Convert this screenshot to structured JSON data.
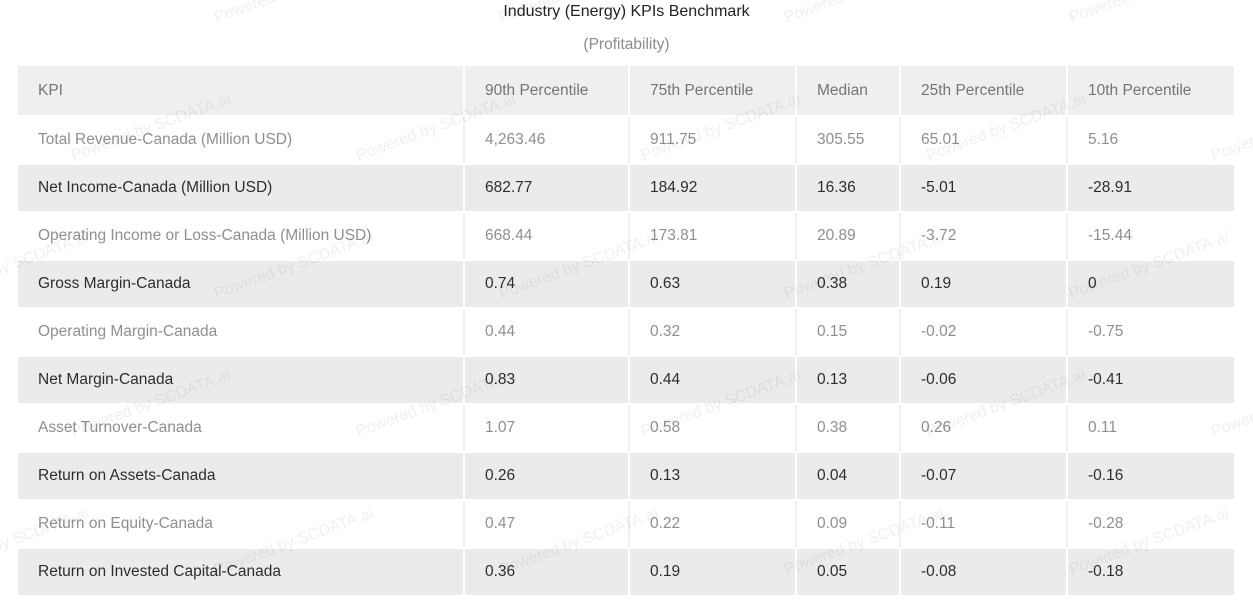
{
  "title": "Industry (Energy) KPIs Benchmark",
  "subtitle": "(Profitability)",
  "watermark_text": "Powered by SCDATA.ai",
  "colors": {
    "header_bg": "#efefef",
    "even_row_bg": "#ebebeb",
    "odd_row_text": "#8f8f8f",
    "even_row_text": "#2d2d2d",
    "header_text": "#757575",
    "subtitle_text": "#8c8c8c"
  },
  "chart_data": {
    "type": "table",
    "title": "Industry (Energy) KPIs Benchmark",
    "subtitle": "(Profitability)",
    "columns": [
      "KPI",
      "90th Percentile",
      "75th Percentile",
      "Median",
      "25th Percentile",
      "10th Percentile"
    ],
    "rows": [
      [
        "Total Revenue-Canada (Million USD)",
        "4,263.46",
        "911.75",
        "305.55",
        "65.01",
        "5.16"
      ],
      [
        "Net Income-Canada (Million USD)",
        "682.77",
        "184.92",
        "16.36",
        "-5.01",
        "-28.91"
      ],
      [
        "Operating Income or Loss-Canada (Million USD)",
        "668.44",
        "173.81",
        "20.89",
        "-3.72",
        "-15.44"
      ],
      [
        "Gross Margin-Canada",
        "0.74",
        "0.63",
        "0.38",
        "0.19",
        "0"
      ],
      [
        "Operating Margin-Canada",
        "0.44",
        "0.32",
        "0.15",
        "-0.02",
        "-0.75"
      ],
      [
        "Net Margin-Canada",
        "0.83",
        "0.44",
        "0.13",
        "-0.06",
        "-0.41"
      ],
      [
        "Asset Turnover-Canada",
        "1.07",
        "0.58",
        "0.38",
        "0.26",
        "0.11"
      ],
      [
        "Return on Assets-Canada",
        "0.26",
        "0.13",
        "0.04",
        "-0.07",
        "-0.16"
      ],
      [
        "Return on Equity-Canada",
        "0.47",
        "0.22",
        "0.09",
        "-0.11",
        "-0.28"
      ],
      [
        "Return on Invested Capital-Canada",
        "0.36",
        "0.19",
        "0.05",
        "-0.08",
        "-0.18"
      ]
    ]
  }
}
